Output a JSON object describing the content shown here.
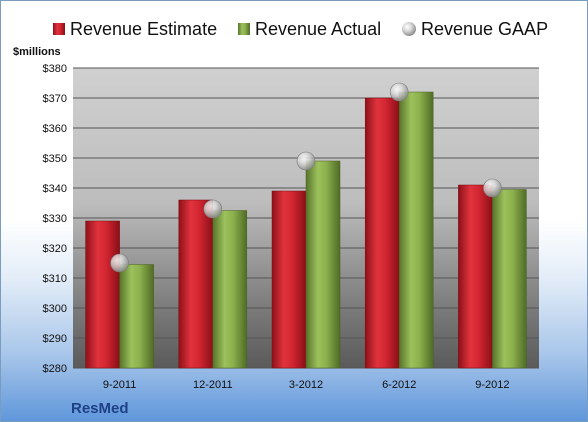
{
  "chart_data": {
    "type": "bar",
    "ylabel": "$millions",
    "ylim": [
      280,
      380
    ],
    "yticks": [
      "$280",
      "$290",
      "$300",
      "$310",
      "$320",
      "$330",
      "$340",
      "$350",
      "$360",
      "$370",
      "$380"
    ],
    "ytick_values": [
      280,
      290,
      300,
      310,
      320,
      330,
      340,
      350,
      360,
      370,
      380
    ],
    "categories": [
      "9-2011",
      "12-2011",
      "3-2012",
      "6-2012",
      "9-2012"
    ],
    "series": [
      {
        "name": "Revenue Estimate",
        "kind": "bar",
        "color": "#cc1f2a",
        "values": [
          329,
          336,
          339,
          370,
          341
        ]
      },
      {
        "name": "Revenue Actual",
        "kind": "bar",
        "color": "#7fa344",
        "values": [
          314.5,
          332.5,
          349,
          372,
          339.5
        ]
      },
      {
        "name": "Revenue GAAP",
        "kind": "marker",
        "color": "#c8c8c8",
        "values": [
          315,
          333,
          349,
          372,
          340
        ]
      }
    ],
    "grid": true,
    "legend_position": "top",
    "brand": "ResMed"
  }
}
